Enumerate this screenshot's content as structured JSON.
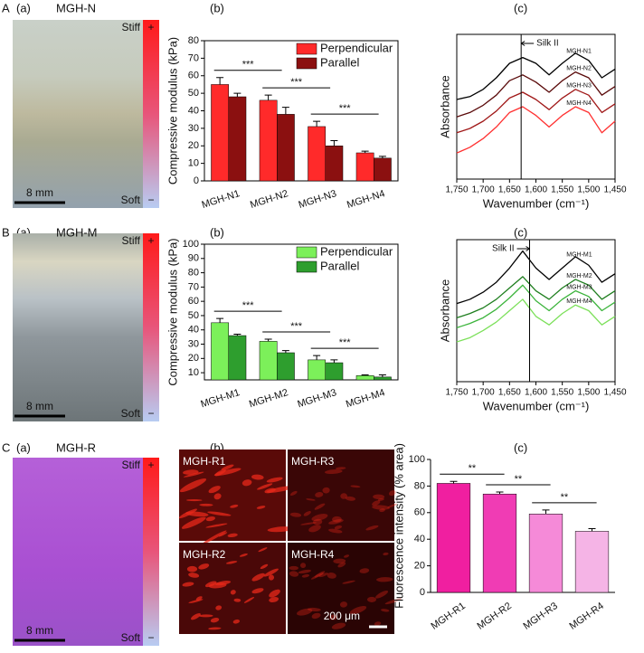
{
  "rows": [
    {
      "letter": "A",
      "sublabels": [
        "(a)",
        "(b)",
        "(c)"
      ]
    },
    {
      "letter": "B",
      "sublabels": [
        "(a)",
        "(b)",
        "(c)"
      ]
    },
    {
      "letter": "C",
      "sublabels": [
        "(a)",
        "(b)",
        "(c)"
      ]
    }
  ],
  "photos": [
    {
      "title": "MGH-N",
      "stiff": "Stiff",
      "soft": "Soft",
      "plus": "+",
      "minus": "−",
      "scale": "8 mm"
    },
    {
      "title": "MGH-M",
      "stiff": "Stiff",
      "soft": "Soft",
      "plus": "+",
      "minus": "−",
      "scale": "8 mm"
    },
    {
      "title": "MGH-R",
      "stiff": "Stiff",
      "soft": "Soft",
      "plus": "+",
      "minus": "−",
      "scale": "8 mm"
    }
  ],
  "micro": {
    "labels": [
      "MGH-R1",
      "MGH-R3",
      "MGH-R2",
      "MGH-R4"
    ],
    "scale": "200 μm"
  },
  "chart_data": [
    {
      "type": "bar",
      "y_label": "Compressive modulus (kPa)",
      "categories": [
        "MGH-N1",
        "MGH-N2",
        "MGH-N3",
        "MGH-N4"
      ],
      "series": [
        {
          "name": "Perpendicular",
          "color": "#ff2a2a",
          "values": [
            55,
            46,
            31,
            16
          ],
          "errors": [
            4,
            3,
            3,
            1
          ]
        },
        {
          "name": "Parallel",
          "color": "#8b1010",
          "values": [
            48,
            38,
            20,
            13
          ],
          "errors": [
            2,
            4,
            3,
            1
          ]
        }
      ],
      "ylim": [
        0,
        80
      ],
      "yticks": [
        0,
        10,
        20,
        30,
        40,
        50,
        60,
        70,
        80
      ],
      "legend": "upper right",
      "significance": [
        {
          "label": "***",
          "from": "MGH-N1",
          "to": "MGH-N2"
        },
        {
          "label": "***",
          "from": "MGH-N2",
          "to": "MGH-N3"
        },
        {
          "label": "***",
          "from": "MGH-N3",
          "to": "MGH-N4"
        }
      ]
    },
    {
      "type": "spectra",
      "x_label": "Wavenumber (cm⁻¹)",
      "y_label": "Absorbance",
      "x": [
        1750,
        1725,
        1700,
        1675,
        1650,
        1625,
        1600,
        1575,
        1550,
        1525,
        1500,
        1475,
        1450
      ],
      "series": [
        {
          "name": "MGH-N1",
          "color": "#000000",
          "values": [
            55,
            57,
            62,
            70,
            80,
            84,
            80,
            72,
            80,
            87,
            82,
            70,
            76
          ]
        },
        {
          "name": "MGH-N2",
          "color": "#5a0a0a",
          "values": [
            43,
            46,
            51,
            58,
            68,
            72,
            67,
            60,
            68,
            74,
            70,
            58,
            64
          ]
        },
        {
          "name": "MGH-N3",
          "color": "#a01818",
          "values": [
            32,
            35,
            40,
            47,
            56,
            60,
            55,
            48,
            56,
            62,
            58,
            46,
            52
          ]
        },
        {
          "name": "MGH-N4",
          "color": "#ff3030",
          "values": [
            18,
            22,
            28,
            36,
            46,
            50,
            44,
            36,
            44,
            50,
            46,
            32,
            40
          ]
        }
      ],
      "xlim": [
        1750,
        1450
      ],
      "ylim": [
        0,
        100
      ],
      "xticks": [
        {
          "value": 1750,
          "label": "1,750"
        },
        {
          "value": 1700,
          "label": "1,700"
        },
        {
          "value": 1650,
          "label": "1,650"
        },
        {
          "value": 1600,
          "label": "1,600"
        },
        {
          "value": 1550,
          "label": "1,550"
        },
        {
          "value": 1500,
          "label": "1,500"
        },
        {
          "value": 1450,
          "label": "1,450"
        }
      ],
      "marker": {
        "x": 1628,
        "label": "Silk II"
      }
    },
    {
      "type": "bar",
      "y_label": "Compressive modulus (kPa)",
      "categories": [
        "MGH-M1",
        "MGH-M2",
        "MGH-M3",
        "MGH-M4"
      ],
      "series": [
        {
          "name": "Perpendicular",
          "color": "#7cf05a",
          "values": [
            45,
            32,
            19,
            8
          ],
          "errors": [
            3,
            1.5,
            3,
            0.5
          ]
        },
        {
          "name": "Parallel",
          "color": "#2e9e2e",
          "values": [
            36,
            24,
            17,
            7
          ],
          "errors": [
            1,
            1.5,
            2,
            1.5
          ]
        }
      ],
      "ylim": [
        5,
        100
      ],
      "yticks": [
        10,
        20,
        30,
        40,
        50,
        60,
        70,
        80,
        90,
        100
      ],
      "legend": "upper right",
      "significance": [
        {
          "label": "***",
          "from": "MGH-M1",
          "to": "MGH-M2"
        },
        {
          "label": "***",
          "from": "MGH-M2",
          "to": "MGH-M3"
        },
        {
          "label": "***",
          "from": "MGH-M3",
          "to": "MGH-M4"
        }
      ]
    },
    {
      "type": "spectra",
      "x_label": "Wavenumber (cm⁻¹)",
      "y_label": "Absorbance",
      "x": [
        1750,
        1725,
        1700,
        1675,
        1650,
        1625,
        1600,
        1575,
        1550,
        1525,
        1500,
        1475,
        1450
      ],
      "series": [
        {
          "name": "MGH-M1",
          "color": "#000000",
          "values": [
            55,
            58,
            63,
            70,
            80,
            92,
            80,
            72,
            80,
            88,
            82,
            70,
            76
          ]
        },
        {
          "name": "MGH-M2",
          "color": "#1e7e1e",
          "values": [
            45,
            48,
            52,
            58,
            66,
            74,
            64,
            58,
            66,
            72,
            68,
            58,
            64
          ]
        },
        {
          "name": "MGH-M3",
          "color": "#3cb43c",
          "values": [
            38,
            41,
            45,
            51,
            59,
            68,
            57,
            50,
            58,
            64,
            60,
            50,
            56
          ]
        },
        {
          "name": "MGH-M4",
          "color": "#7ce05a",
          "values": [
            28,
            31,
            36,
            42,
            50,
            58,
            46,
            40,
            48,
            54,
            50,
            40,
            46
          ]
        }
      ],
      "xlim": [
        1750,
        1450
      ],
      "ylim": [
        0,
        100
      ],
      "xticks": [
        {
          "value": 1750,
          "label": "1,750"
        },
        {
          "value": 1700,
          "label": "1,700"
        },
        {
          "value": 1650,
          "label": "1,650"
        },
        {
          "value": 1600,
          "label": "1,600"
        },
        {
          "value": 1550,
          "label": "1,550"
        },
        {
          "value": 1500,
          "label": "1,500"
        },
        {
          "value": 1450,
          "label": "1,450"
        }
      ],
      "marker": {
        "x": 1612,
        "label": "Silk II"
      }
    },
    {
      "type": "bar",
      "y_label": "Fluorescence intensity (% area)",
      "categories": [
        "MGH-R1",
        "MGH-R2",
        "MGH-R3",
        "MGH-R4"
      ],
      "values": [
        82,
        74,
        59,
        46
      ],
      "errors": [
        1.5,
        1.5,
        3,
        2
      ],
      "colors": [
        "#f01fa0",
        "#f03cb4",
        "#f58ad8",
        "#f5b4e6"
      ],
      "ylim": [
        0,
        100
      ],
      "yticks": [
        0,
        20,
        40,
        60,
        80,
        100
      ],
      "significance": [
        {
          "label": "**",
          "from": "MGH-R1",
          "to": "MGH-R2"
        },
        {
          "label": "**",
          "from": "MGH-R2",
          "to": "MGH-R3"
        },
        {
          "label": "**",
          "from": "MGH-R3",
          "to": "MGH-R4"
        }
      ]
    }
  ]
}
